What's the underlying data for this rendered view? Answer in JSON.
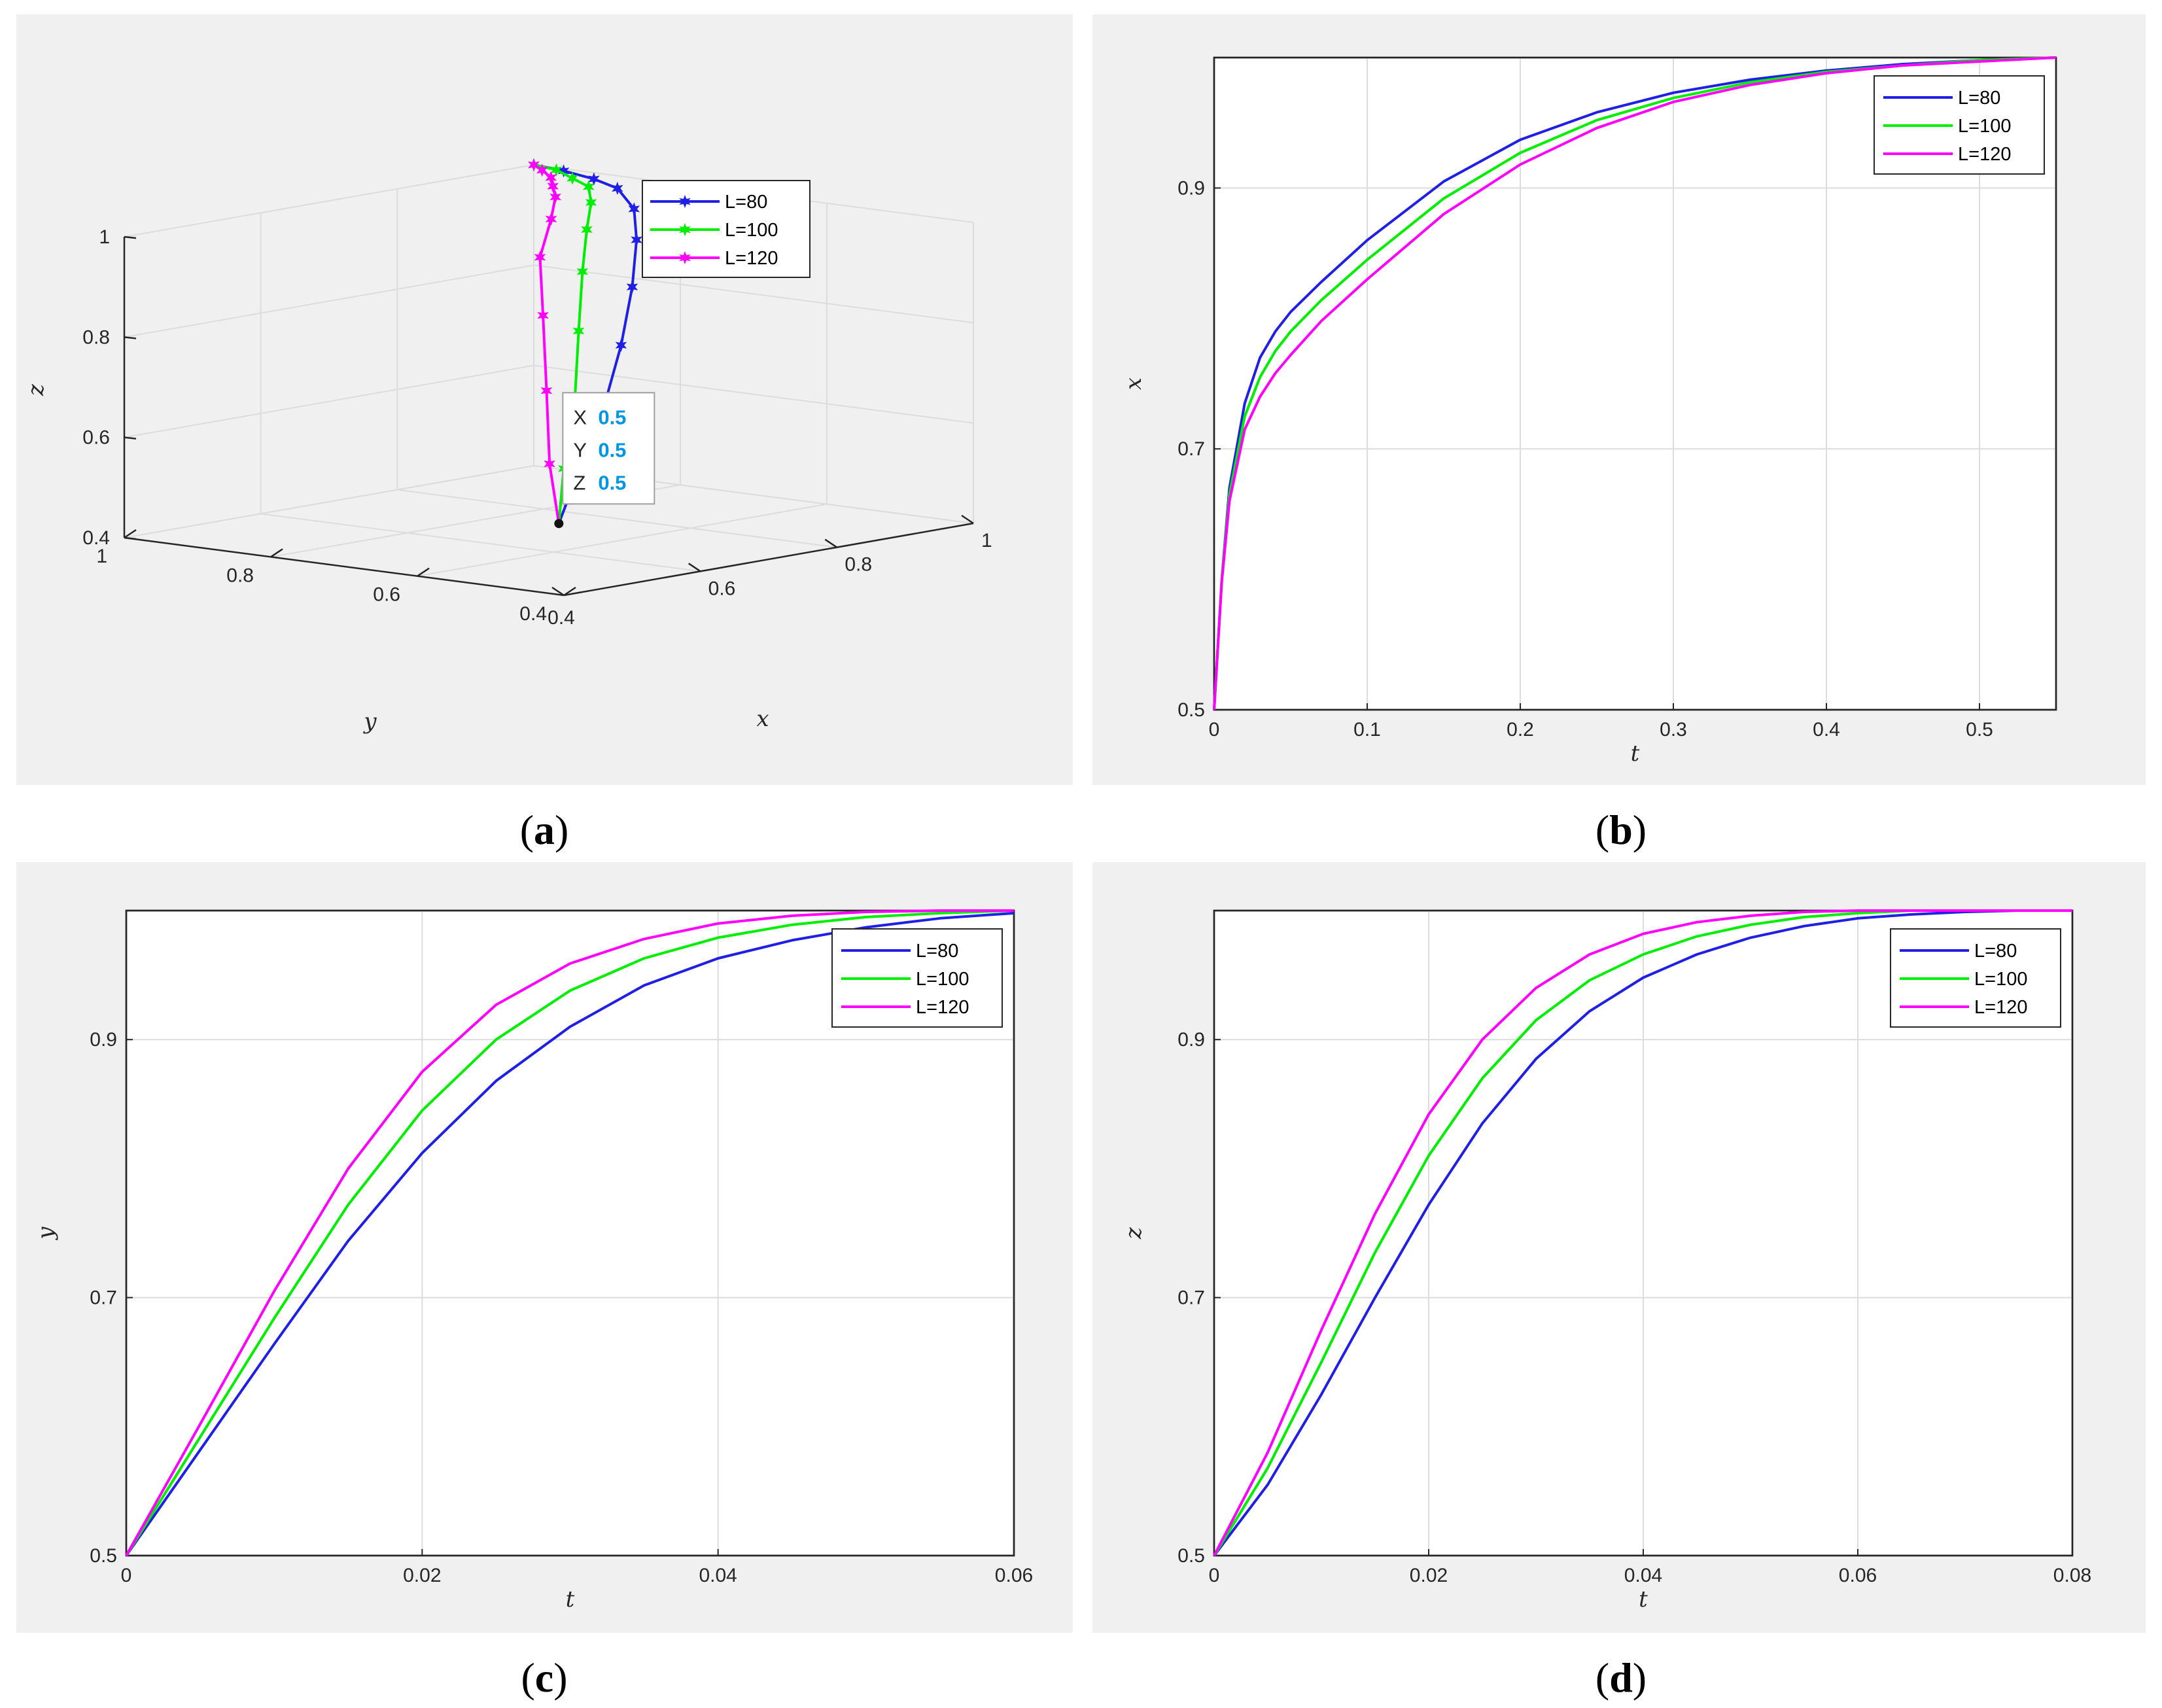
{
  "chart_data": [
    {
      "id": "a",
      "type": "line3d",
      "caption": "a",
      "xlabel": "x",
      "ylabel": "y",
      "zlabel": "z",
      "xticks": [
        "0.4",
        "0.6",
        "0.8",
        "1"
      ],
      "yticks": [
        "0.4",
        "0.6",
        "0.8",
        "1"
      ],
      "zticks": [
        "0.4",
        "0.6",
        "0.8",
        "1"
      ],
      "xlim": [
        0.4,
        1
      ],
      "ylim": [
        0.4,
        1
      ],
      "zlim": [
        0.4,
        1
      ],
      "legend": "top-right",
      "series": [
        {
          "name": "L=80",
          "color": "#1f1fe6",
          "marker": "star",
          "points": [
            [
              0.5,
              0.5,
              0.5
            ],
            [
              0.56,
              0.53,
              0.58
            ],
            [
              0.64,
              0.57,
              0.68
            ],
            [
              0.72,
              0.62,
              0.78
            ],
            [
              0.79,
              0.67,
              0.87
            ],
            [
              0.85,
              0.72,
              0.94
            ],
            [
              0.9,
              0.77,
              0.98
            ],
            [
              0.94,
              0.83,
              1.0
            ],
            [
              0.97,
              0.89,
              1.0
            ],
            [
              0.99,
              0.95,
              1.0
            ],
            [
              1.0,
              1.0,
              1.0
            ]
          ]
        },
        {
          "name": "L=100",
          "color": "#00ee00",
          "marker": "star",
          "points": [
            [
              0.5,
              0.5,
              0.5
            ],
            [
              0.55,
              0.54,
              0.59
            ],
            [
              0.62,
              0.59,
              0.7
            ],
            [
              0.69,
              0.65,
              0.81
            ],
            [
              0.76,
              0.71,
              0.9
            ],
            [
              0.82,
              0.76,
              0.96
            ],
            [
              0.88,
              0.81,
              0.99
            ],
            [
              0.93,
              0.86,
              1.0
            ],
            [
              0.96,
              0.91,
              1.0
            ],
            [
              0.99,
              0.96,
              1.0
            ],
            [
              1.0,
              1.0,
              1.0
            ]
          ]
        },
        {
          "name": "L=120",
          "color": "#ff00ff",
          "marker": "star",
          "points": [
            [
              0.5,
              0.5,
              0.5
            ],
            [
              0.54,
              0.55,
              0.6
            ],
            [
              0.6,
              0.61,
              0.72
            ],
            [
              0.67,
              0.68,
              0.84
            ],
            [
              0.73,
              0.74,
              0.93
            ],
            [
              0.8,
              0.79,
              0.98
            ],
            [
              0.86,
              0.84,
              1.0
            ],
            [
              0.91,
              0.89,
              1.0
            ],
            [
              0.95,
              0.93,
              1.0
            ],
            [
              0.98,
              0.97,
              1.0
            ],
            [
              1.0,
              1.0,
              1.0
            ]
          ]
        }
      ],
      "datatip": {
        "x_key": "X",
        "x_val": "0.5",
        "y_key": "Y",
        "y_val": "0.5",
        "z_key": "Z",
        "z_val": "0.5"
      }
    },
    {
      "id": "b",
      "type": "line",
      "caption": "b",
      "xlabel": "t",
      "ylabel": "x",
      "xlim": [
        0,
        0.55
      ],
      "ylim": [
        0.5,
        1
      ],
      "xticks": [
        0,
        0.1,
        0.2,
        0.3,
        0.4,
        0.5
      ],
      "xtick_labels": [
        "0",
        "0.1",
        "0.2",
        "0.3",
        "0.4",
        "0.5"
      ],
      "yticks": [
        0.5,
        0.7,
        0.9
      ],
      "ytick_labels": [
        "0.5",
        "0.7",
        "0.9"
      ],
      "legend": "top-right",
      "series": [
        {
          "name": "L=80",
          "color": "#1f1fe6",
          "x": [
            0,
            0.005,
            0.01,
            0.02,
            0.03,
            0.04,
            0.05,
            0.07,
            0.1,
            0.15,
            0.2,
            0.25,
            0.3,
            0.35,
            0.4,
            0.45,
            0.5,
            0.55
          ],
          "y": [
            0.5,
            0.6,
            0.67,
            0.735,
            0.77,
            0.79,
            0.805,
            0.828,
            0.86,
            0.905,
            0.937,
            0.958,
            0.973,
            0.983,
            0.99,
            0.995,
            0.998,
            1.0
          ]
        },
        {
          "name": "L=100",
          "color": "#00ee00",
          "x": [
            0,
            0.005,
            0.01,
            0.02,
            0.03,
            0.04,
            0.05,
            0.07,
            0.1,
            0.15,
            0.2,
            0.25,
            0.3,
            0.35,
            0.4,
            0.45,
            0.5,
            0.55
          ],
          "y": [
            0.5,
            0.6,
            0.665,
            0.725,
            0.755,
            0.775,
            0.79,
            0.814,
            0.845,
            0.892,
            0.927,
            0.952,
            0.969,
            0.981,
            0.989,
            0.994,
            0.998,
            1.0
          ]
        },
        {
          "name": "L=120",
          "color": "#ff00ff",
          "x": [
            0,
            0.005,
            0.01,
            0.02,
            0.03,
            0.04,
            0.05,
            0.07,
            0.1,
            0.15,
            0.2,
            0.25,
            0.3,
            0.35,
            0.4,
            0.45,
            0.5,
            0.55
          ],
          "y": [
            0.5,
            0.598,
            0.66,
            0.715,
            0.74,
            0.758,
            0.772,
            0.798,
            0.83,
            0.88,
            0.918,
            0.946,
            0.966,
            0.979,
            0.988,
            0.994,
            0.997,
            1.0
          ]
        }
      ]
    },
    {
      "id": "c",
      "type": "line",
      "caption": "c",
      "xlabel": "t",
      "ylabel": "y",
      "xlim": [
        0,
        0.06
      ],
      "ylim": [
        0.5,
        1
      ],
      "xticks": [
        0,
        0.02,
        0.04,
        0.06
      ],
      "xtick_labels": [
        "0",
        "0.02",
        "0.04",
        "0.06"
      ],
      "yticks": [
        0.5,
        0.7,
        0.9
      ],
      "ytick_labels": [
        "0.5",
        "0.7",
        "0.9"
      ],
      "legend": "top-right",
      "series": [
        {
          "name": "L=80",
          "color": "#1f1fe6",
          "x": [
            0,
            0.005,
            0.01,
            0.015,
            0.02,
            0.025,
            0.03,
            0.035,
            0.04,
            0.045,
            0.05,
            0.055,
            0.06
          ],
          "y": [
            0.5,
            0.582,
            0.664,
            0.744,
            0.812,
            0.868,
            0.91,
            0.942,
            0.963,
            0.977,
            0.987,
            0.994,
            0.998
          ]
        },
        {
          "name": "L=100",
          "color": "#00ee00",
          "x": [
            0,
            0.005,
            0.01,
            0.015,
            0.02,
            0.025,
            0.03,
            0.035,
            0.04,
            0.045,
            0.05,
            0.055,
            0.06
          ],
          "y": [
            0.5,
            0.592,
            0.684,
            0.772,
            0.845,
            0.9,
            0.938,
            0.963,
            0.979,
            0.989,
            0.995,
            0.998,
            1.0
          ]
        },
        {
          "name": "L=120",
          "color": "#ff00ff",
          "x": [
            0,
            0.005,
            0.01,
            0.015,
            0.02,
            0.025,
            0.03,
            0.035,
            0.04,
            0.045,
            0.05,
            0.055,
            0.06
          ],
          "y": [
            0.5,
            0.602,
            0.705,
            0.8,
            0.875,
            0.927,
            0.959,
            0.978,
            0.99,
            0.996,
            0.999,
            1.0,
            1.0
          ]
        }
      ]
    },
    {
      "id": "d",
      "type": "line",
      "caption": "d",
      "xlabel": "t",
      "ylabel": "z",
      "xlim": [
        0,
        0.08
      ],
      "ylim": [
        0.5,
        1
      ],
      "xticks": [
        0,
        0.02,
        0.04,
        0.06,
        0.08
      ],
      "xtick_labels": [
        "0",
        "0.02",
        "0.04",
        "0.06",
        "0.08"
      ],
      "yticks": [
        0.5,
        0.7,
        0.9
      ],
      "ytick_labels": [
        "0.5",
        "0.7",
        "0.9"
      ],
      "legend": "top-right",
      "series": [
        {
          "name": "L=80",
          "color": "#1f1fe6",
          "x": [
            0,
            0.005,
            0.01,
            0.015,
            0.02,
            0.025,
            0.03,
            0.035,
            0.04,
            0.045,
            0.05,
            0.055,
            0.06,
            0.065,
            0.07,
            0.075,
            0.08
          ],
          "y": [
            0.5,
            0.555,
            0.625,
            0.7,
            0.772,
            0.835,
            0.885,
            0.922,
            0.948,
            0.966,
            0.979,
            0.988,
            0.994,
            0.997,
            0.999,
            1.0,
            1.0
          ]
        },
        {
          "name": "L=100",
          "color": "#00ee00",
          "x": [
            0,
            0.005,
            0.01,
            0.015,
            0.02,
            0.025,
            0.03,
            0.035,
            0.04,
            0.045,
            0.05,
            0.055,
            0.06,
            0.065,
            0.07,
            0.075,
            0.08
          ],
          "y": [
            0.5,
            0.568,
            0.65,
            0.735,
            0.81,
            0.87,
            0.915,
            0.946,
            0.966,
            0.98,
            0.989,
            0.995,
            0.998,
            1.0,
            1.0,
            1.0,
            1.0
          ]
        },
        {
          "name": "L=120",
          "color": "#ff00ff",
          "x": [
            0,
            0.005,
            0.01,
            0.015,
            0.02,
            0.025,
            0.03,
            0.035,
            0.04,
            0.045,
            0.05,
            0.055,
            0.06,
            0.065,
            0.07,
            0.075,
            0.08
          ],
          "y": [
            0.5,
            0.58,
            0.675,
            0.765,
            0.842,
            0.9,
            0.94,
            0.966,
            0.982,
            0.991,
            0.996,
            0.999,
            1.0,
            1.0,
            1.0,
            1.0,
            1.0
          ]
        }
      ]
    }
  ]
}
